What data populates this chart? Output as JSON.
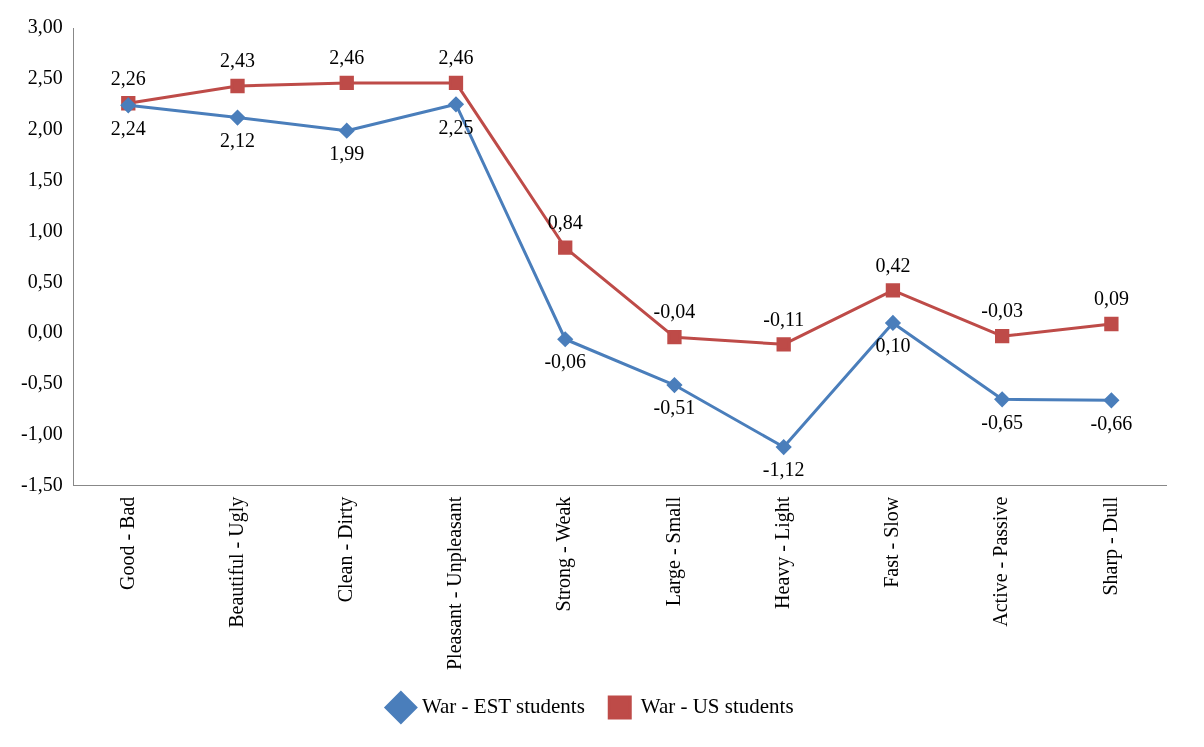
{
  "chart_data": {
    "type": "line",
    "categories": [
      "Good - Bad",
      "Beautiful - Ugly",
      "Clean - Dirty",
      "Pleasant - Unpleasant",
      "Strong - Weak",
      "Large - Small",
      "Heavy - Light",
      "Fast - Slow",
      "Active - Passive",
      "Sharp - Dull"
    ],
    "series": [
      {
        "name": "War - EST students",
        "color": "#4a7ebb",
        "marker": "diamond",
        "values": [
          2.24,
          2.12,
          1.99,
          2.25,
          -0.06,
          -0.51,
          -1.12,
          0.1,
          -0.65,
          -0.66
        ],
        "value_labels": [
          "2,24",
          "2,12",
          "1,99",
          "2,25",
          "-0,06",
          "-0,51",
          "-1,12",
          "0,10",
          "-0,65",
          "-0,66"
        ]
      },
      {
        "name": "War - US students",
        "color": "#be4b48",
        "marker": "square",
        "values": [
          2.26,
          2.43,
          2.46,
          2.46,
          0.84,
          -0.04,
          -0.11,
          0.42,
          -0.03,
          0.09
        ],
        "value_labels": [
          "2,26",
          "2,43",
          "2,46",
          "2,46",
          "0,84",
          "-0,04",
          "-0,11",
          "0,42",
          "-0,03",
          "0,09"
        ]
      }
    ],
    "ylim": [
      -1.5,
      3
    ],
    "yticks": [
      {
        "value": -1.5,
        "label": "-1,50"
      },
      {
        "value": -1,
        "label": "-1,00"
      },
      {
        "value": -0.5,
        "label": "-0,50"
      },
      {
        "value": 0,
        "label": "0,00"
      },
      {
        "value": 0.5,
        "label": "0,50"
      },
      {
        "value": 1,
        "label": "1,00"
      },
      {
        "value": 1.5,
        "label": "1,50"
      },
      {
        "value": 2,
        "label": "2,00"
      },
      {
        "value": 2.5,
        "label": "2,50"
      },
      {
        "value": 3,
        "label": "3,00"
      }
    ],
    "grid": false,
    "legend": "bottom",
    "line_style": "solid"
  }
}
